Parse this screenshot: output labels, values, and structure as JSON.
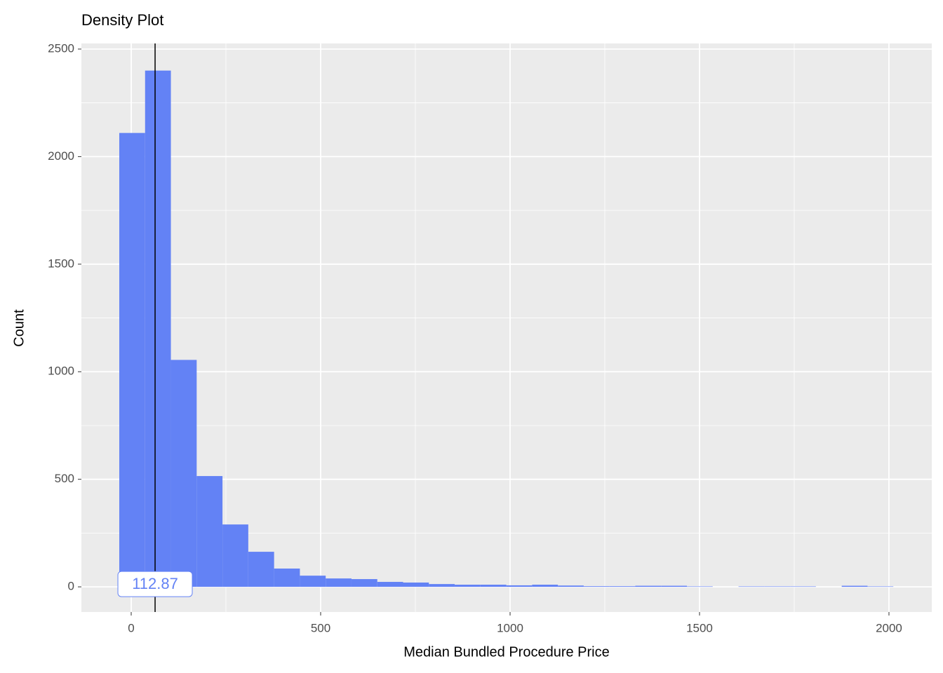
{
  "chart_data": {
    "type": "histogram",
    "title": "Density Plot",
    "x_label": "Median Bundled Procedure Price",
    "y_label": "Count",
    "bins": [
      -31.5,
      36.6,
      104.7,
      172.8,
      240.9,
      309,
      377.1,
      445.2,
      513.3,
      581.4,
      649.5,
      717.6,
      785.7,
      853.8,
      921.9,
      990,
      1058.1,
      1126.2,
      1194.3,
      1262.4,
      1330.5,
      1398.6,
      1466.7,
      1534.8,
      1602.9,
      1671,
      1739.1,
      1807.2,
      1875.3,
      1943.4,
      2011.5
    ],
    "values": [
      2110,
      2400,
      1055,
      515,
      290,
      163,
      85,
      52,
      39,
      36,
      23,
      20,
      13,
      10,
      10,
      7,
      10,
      6,
      3,
      3,
      5,
      5,
      2,
      0,
      2,
      2,
      2,
      0,
      5,
      2
    ],
    "color": "#6382f5",
    "vline": 63,
    "vline_color": "#000000",
    "annotation": "112.87",
    "xlim": [
      -131.5,
      2113
    ],
    "ylim": [
      -117,
      2526
    ],
    "xticks": [
      0,
      500,
      1000,
      1500,
      2000
    ],
    "yticks": [
      0,
      500,
      1000,
      1500,
      2000,
      2500
    ],
    "xminor": [
      250,
      750,
      1250,
      1750
    ],
    "yminor": [
      250,
      750,
      1250,
      1750,
      2250
    ],
    "grid": true
  }
}
